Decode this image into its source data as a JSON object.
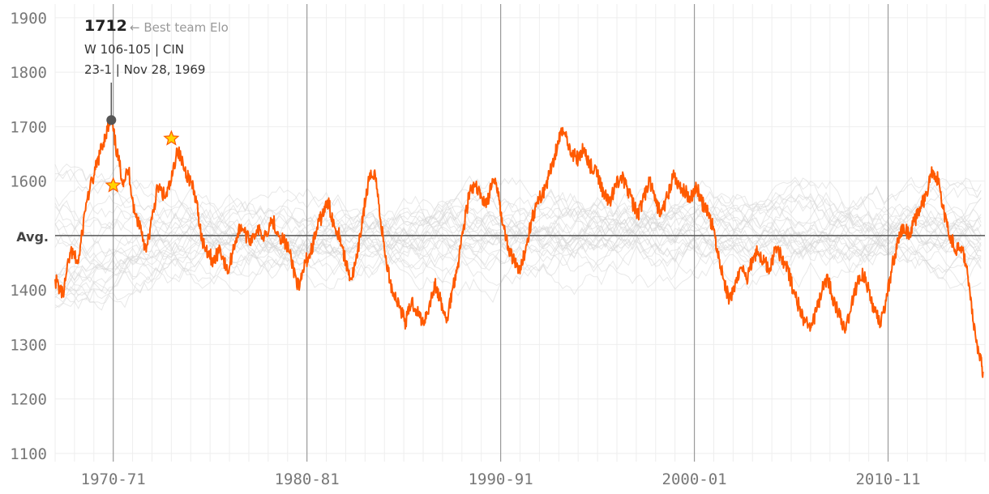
{
  "chart_data": {
    "type": "line",
    "x_unit": "season start year",
    "xlim": [
      1967,
      2015
    ],
    "ylim": [
      1085,
      1925
    ],
    "y_ticks": [
      {
        "value": 1900,
        "label": "1900"
      },
      {
        "value": 1800,
        "label": "1800"
      },
      {
        "value": 1700,
        "label": "1700"
      },
      {
        "value": 1600,
        "label": "1600"
      },
      {
        "value": 1500,
        "label": "Avg."
      },
      {
        "value": 1400,
        "label": "1400"
      },
      {
        "value": 1300,
        "label": "1300"
      },
      {
        "value": 1200,
        "label": "1200"
      },
      {
        "value": 1100,
        "label": "1100"
      }
    ],
    "x_ticks": [
      {
        "value": 1970,
        "label": "1970-71"
      },
      {
        "value": 1980,
        "label": "1980-81"
      },
      {
        "value": 1990,
        "label": "1990-91"
      },
      {
        "value": 2000,
        "label": "2000-01"
      },
      {
        "value": 2010,
        "label": "2010-11"
      }
    ],
    "average": 1500,
    "grid": true,
    "highlight_series": {
      "color": "#ff5a00",
      "points": [
        [
          1967.0,
          1420
        ],
        [
          1967.4,
          1390
        ],
        [
          1967.8,
          1470
        ],
        [
          1968.2,
          1450
        ],
        [
          1968.6,
          1560
        ],
        [
          1969.0,
          1610
        ],
        [
          1969.3,
          1650
        ],
        [
          1969.6,
          1685
        ],
        [
          1969.9,
          1712
        ],
        [
          1970.2,
          1650
        ],
        [
          1970.5,
          1600
        ],
        [
          1970.8,
          1620
        ],
        [
          1971.1,
          1540
        ],
        [
          1971.4,
          1520
        ],
        [
          1971.7,
          1470
        ],
        [
          1972.0,
          1530
        ],
        [
          1972.3,
          1590
        ],
        [
          1972.7,
          1570
        ],
        [
          1973.0,
          1600
        ],
        [
          1973.3,
          1660
        ],
        [
          1973.7,
          1620
        ],
        [
          1974.0,
          1600
        ],
        [
          1974.3,
          1560
        ],
        [
          1974.6,
          1490
        ],
        [
          1974.9,
          1470
        ],
        [
          1975.2,
          1450
        ],
        [
          1975.5,
          1480
        ],
        [
          1975.9,
          1430
        ],
        [
          1976.3,
          1490
        ],
        [
          1976.6,
          1520
        ],
        [
          1977.0,
          1490
        ],
        [
          1977.4,
          1510
        ],
        [
          1977.8,
          1500
        ],
        [
          1978.2,
          1530
        ],
        [
          1978.6,
          1500
        ],
        [
          1979.0,
          1480
        ],
        [
          1979.3,
          1440
        ],
        [
          1979.6,
          1400
        ],
        [
          1979.9,
          1450
        ],
        [
          1980.2,
          1470
        ],
        [
          1980.5,
          1510
        ],
        [
          1980.8,
          1540
        ],
        [
          1981.1,
          1560
        ],
        [
          1981.4,
          1520
        ],
        [
          1981.7,
          1500
        ],
        [
          1982.0,
          1450
        ],
        [
          1982.3,
          1420
        ],
        [
          1982.6,
          1460
        ],
        [
          1982.9,
          1540
        ],
        [
          1983.2,
          1600
        ],
        [
          1983.5,
          1620
        ],
        [
          1983.8,
          1530
        ],
        [
          1984.1,
          1450
        ],
        [
          1984.4,
          1400
        ],
        [
          1984.8,
          1370
        ],
        [
          1985.1,
          1340
        ],
        [
          1985.4,
          1380
        ],
        [
          1985.7,
          1360
        ],
        [
          1986.0,
          1340
        ],
        [
          1986.3,
          1370
        ],
        [
          1986.6,
          1410
        ],
        [
          1986.9,
          1380
        ],
        [
          1987.2,
          1340
        ],
        [
          1987.5,
          1400
        ],
        [
          1987.8,
          1450
        ],
        [
          1988.1,
          1520
        ],
        [
          1988.4,
          1580
        ],
        [
          1988.7,
          1590
        ],
        [
          1989.0,
          1570
        ],
        [
          1989.3,
          1560
        ],
        [
          1989.6,
          1600
        ],
        [
          1989.9,
          1580
        ],
        [
          1990.1,
          1520
        ],
        [
          1990.4,
          1480
        ],
        [
          1990.7,
          1450
        ],
        [
          1991.0,
          1430
        ],
        [
          1991.3,
          1480
        ],
        [
          1991.6,
          1530
        ],
        [
          1991.9,
          1560
        ],
        [
          1992.2,
          1580
        ],
        [
          1992.5,
          1610
        ],
        [
          1992.8,
          1650
        ],
        [
          1993.1,
          1690
        ],
        [
          1993.4,
          1680
        ],
        [
          1993.7,
          1650
        ],
        [
          1994.0,
          1640
        ],
        [
          1994.3,
          1660
        ],
        [
          1994.6,
          1630
        ],
        [
          1995.0,
          1610
        ],
        [
          1995.3,
          1580
        ],
        [
          1995.6,
          1560
        ],
        [
          1995.9,
          1590
        ],
        [
          1996.2,
          1610
        ],
        [
          1996.5,
          1590
        ],
        [
          1996.8,
          1560
        ],
        [
          1997.1,
          1540
        ],
        [
          1997.4,
          1570
        ],
        [
          1997.7,
          1600
        ],
        [
          1998.0,
          1560
        ],
        [
          1998.3,
          1540
        ],
        [
          1998.6,
          1570
        ],
        [
          1998.9,
          1610
        ],
        [
          1999.2,
          1590
        ],
        [
          1999.5,
          1580
        ],
        [
          1999.8,
          1570
        ],
        [
          2000.1,
          1590
        ],
        [
          2000.4,
          1560
        ],
        [
          2000.7,
          1540
        ],
        [
          2001.0,
          1510
        ],
        [
          2001.2,
          1470
        ],
        [
          2001.5,
          1420
        ],
        [
          2001.8,
          1380
        ],
        [
          2002.1,
          1410
        ],
        [
          2002.4,
          1440
        ],
        [
          2002.7,
          1420
        ],
        [
          2003.0,
          1460
        ],
        [
          2003.3,
          1470
        ],
        [
          2003.6,
          1450
        ],
        [
          2003.9,
          1440
        ],
        [
          2004.2,
          1480
        ],
        [
          2004.5,
          1460
        ],
        [
          2004.8,
          1440
        ],
        [
          2005.1,
          1400
        ],
        [
          2005.4,
          1370
        ],
        [
          2005.7,
          1340
        ],
        [
          2006.0,
          1330
        ],
        [
          2006.3,
          1360
        ],
        [
          2006.6,
          1400
        ],
        [
          2006.9,
          1420
        ],
        [
          2007.2,
          1380
        ],
        [
          2007.5,
          1350
        ],
        [
          2007.8,
          1330
        ],
        [
          2008.1,
          1370
        ],
        [
          2008.4,
          1410
        ],
        [
          2008.7,
          1430
        ],
        [
          2009.0,
          1400
        ],
        [
          2009.3,
          1360
        ],
        [
          2009.6,
          1340
        ],
        [
          2009.9,
          1380
        ],
        [
          2010.2,
          1440
        ],
        [
          2010.5,
          1490
        ],
        [
          2010.8,
          1520
        ],
        [
          2011.1,
          1500
        ],
        [
          2011.4,
          1530
        ],
        [
          2011.7,
          1550
        ],
        [
          2012.0,
          1580
        ],
        [
          2012.3,
          1620
        ],
        [
          2012.6,
          1600
        ],
        [
          2012.9,
          1540
        ],
        [
          2013.2,
          1500
        ],
        [
          2013.5,
          1470
        ],
        [
          2013.8,
          1480
        ],
        [
          2014.1,
          1430
        ],
        [
          2014.4,
          1340
        ],
        [
          2014.7,
          1280
        ],
        [
          2014.9,
          1250
        ]
      ]
    },
    "markers": [
      {
        "x": 1970.0,
        "y": 1592,
        "shape": "star"
      },
      {
        "x": 1973.0,
        "y": 1678,
        "shape": "star"
      }
    ],
    "annotation": {
      "x": 1969.9,
      "y": 1712,
      "value": "1712",
      "label": "← Best team Elo",
      "line1": "W 106-105 | CIN",
      "line2": "23-1 | Nov 28, 1969"
    },
    "colors": {
      "highlight": "#ff5a00",
      "background_lines": "#d6d6d6",
      "grid": "#eeeeee",
      "avg_line": "#555555",
      "star_fill": "#ffd400",
      "star_stroke": "#ff5a00"
    }
  }
}
